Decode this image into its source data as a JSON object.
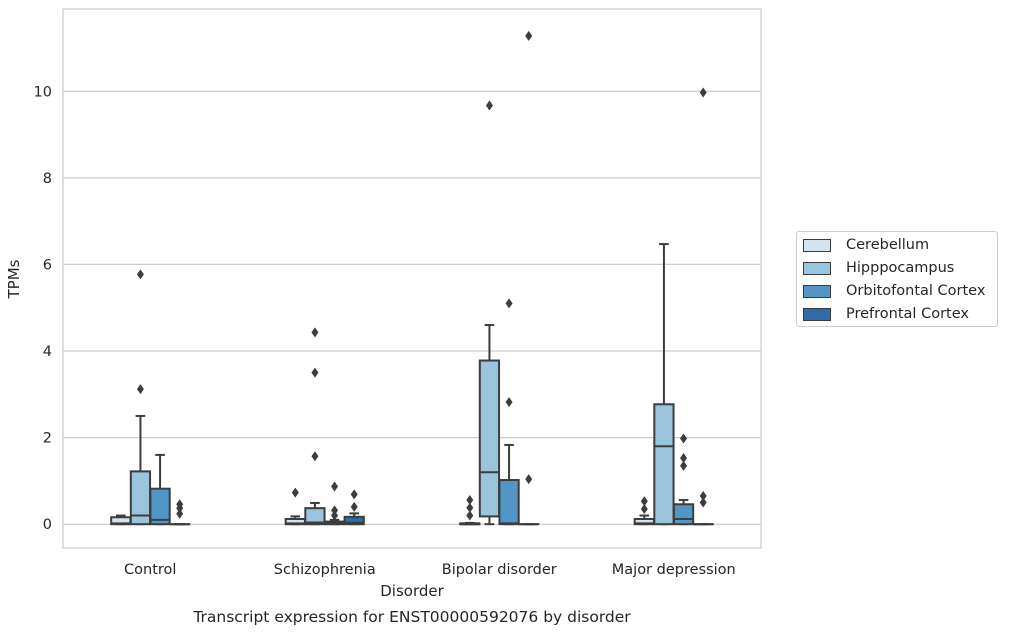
{
  "chart_data": {
    "type": "box",
    "title": "Transcript expression for ENST00000592076 by disorder",
    "xlabel": "Disorder",
    "ylabel": "TPMs",
    "ylim": [
      -0.55,
      11.9
    ],
    "yticks": [
      0,
      2,
      4,
      6,
      8,
      10
    ],
    "grid": "horizontal",
    "legend_position": "right",
    "categories": [
      "Control",
      "Schizophrenia",
      "Bipolar disorder",
      "Major depression"
    ],
    "series": [
      {
        "name": "Cerebellum",
        "color": "#d5e3f0",
        "boxes": [
          {
            "whislo": 0,
            "q1": 0,
            "med": 0.02,
            "q3": 0.16,
            "whishi": 0.2,
            "fliers": []
          },
          {
            "whislo": 0,
            "q1": 0,
            "med": 0.02,
            "q3": 0.12,
            "whishi": 0.18,
            "fliers": [
              0.73
            ]
          },
          {
            "whislo": 0,
            "q1": 0,
            "med": 0,
            "q3": 0.02,
            "whishi": 0.03,
            "fliers": [
              0.2,
              0.38,
              0.56
            ]
          },
          {
            "whislo": 0,
            "q1": 0,
            "med": 0.02,
            "q3": 0.12,
            "whishi": 0.2,
            "fliers": [
              0.35,
              0.53
            ]
          }
        ]
      },
      {
        "name": "Hipppocampus",
        "color": "#9ac3dc",
        "boxes": [
          {
            "whislo": 0,
            "q1": 0,
            "med": 0.2,
            "q3": 1.22,
            "whishi": 2.5,
            "fliers": [
              3.12,
              5.77
            ]
          },
          {
            "whislo": 0,
            "q1": 0,
            "med": 0.04,
            "q3": 0.37,
            "whishi": 0.49,
            "fliers": [
              1.57,
              3.5,
              4.43
            ]
          },
          {
            "whislo": 0,
            "q1": 0.18,
            "med": 1.2,
            "q3": 3.78,
            "whishi": 4.6,
            "fliers": [
              9.67
            ]
          },
          {
            "whislo": 0,
            "q1": 0,
            "med": 1.8,
            "q3": 2.77,
            "whishi": 6.47,
            "fliers": []
          }
        ]
      },
      {
        "name": "Orbitofontal Cortex",
        "color": "#5296c5",
        "boxes": [
          {
            "whislo": 0,
            "q1": 0,
            "med": 0.1,
            "q3": 0.82,
            "whishi": 1.6,
            "fliers": []
          },
          {
            "whislo": 0,
            "q1": 0,
            "med": 0.02,
            "q3": 0.06,
            "whishi": 0.1,
            "fliers": [
              0.2,
              0.32,
              0.87
            ]
          },
          {
            "whislo": 0,
            "q1": 0,
            "med": 0.02,
            "q3": 1.02,
            "whishi": 1.83,
            "fliers": [
              2.82,
              5.1
            ]
          },
          {
            "whislo": 0,
            "q1": 0,
            "med": 0.12,
            "q3": 0.46,
            "whishi": 0.56,
            "fliers": [
              1.35,
              1.53,
              1.98
            ]
          }
        ]
      },
      {
        "name": "Prefrontal Cortex",
        "color": "#2f6ba6",
        "boxes": [
          {
            "whislo": 0,
            "q1": 0,
            "med": 0,
            "q3": 0,
            "whishi": 0,
            "fliers": [
              0.24,
              0.37,
              0.46
            ]
          },
          {
            "whislo": 0,
            "q1": 0,
            "med": 0.03,
            "q3": 0.17,
            "whishi": 0.25,
            "fliers": [
              0.4,
              0.69
            ]
          },
          {
            "whislo": 0,
            "q1": 0,
            "med": 0,
            "q3": 0,
            "whishi": 0,
            "fliers": [
              1.04,
              11.28
            ]
          },
          {
            "whislo": 0,
            "q1": 0,
            "med": 0,
            "q3": 0,
            "whishi": 0,
            "fliers": [
              0.5,
              0.65,
              9.97
            ]
          }
        ]
      }
    ]
  }
}
